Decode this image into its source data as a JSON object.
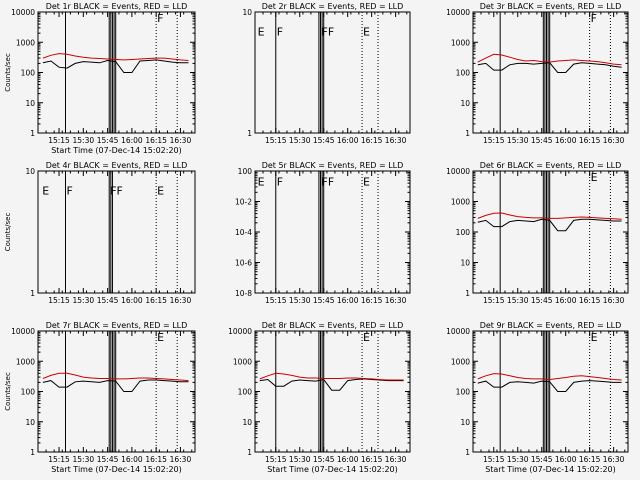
{
  "colors": {
    "events": "#000000",
    "lld": "#cc0000",
    "background": "#f4f4f4"
  },
  "chart_data": [
    {
      "type": "line",
      "title": "Det 1r BLACK = Events, RED = LLD",
      "scale": "log",
      "ylim": [
        1,
        10000
      ],
      "ylabel": "Counts/sec",
      "xlabel": "Start Time (07-Dec-14 15:02:20)",
      "ticks": [
        "1",
        "10",
        "100",
        "1000",
        "10000"
      ],
      "xticks": [
        "15:15",
        "15:30",
        "15:45",
        "16:00",
        "16:15",
        "16:30"
      ],
      "solid_lines": [
        "15:19",
        "15:46",
        "15:47",
        "15:48",
        "15:49",
        "15:50"
      ],
      "dotted_lines": [
        "16:15",
        "16:28"
      ],
      "markers": [
        {
          "label": "F",
          "x": "16:15",
          "y": 10000
        }
      ],
      "series": [
        {
          "name": "Events",
          "color": "#000000",
          "x": [
            "15:05",
            "15:10",
            "15:15",
            "15:20",
            "15:25",
            "15:30",
            "15:35",
            "15:40",
            "15:45",
            "15:50",
            "15:55",
            "16:00",
            "16:05",
            "16:10",
            "16:15",
            "16:20",
            "16:25",
            "16:30",
            "16:35"
          ],
          "values": [
            210,
            240,
            150,
            140,
            200,
            230,
            220,
            210,
            250,
            230,
            100,
            100,
            240,
            250,
            260,
            240,
            220,
            210,
            210
          ]
        },
        {
          "name": "LLD",
          "color": "#cc0000",
          "x": [
            "15:05",
            "15:10",
            "15:15",
            "15:20",
            "15:25",
            "15:30",
            "15:35",
            "15:40",
            "15:45",
            "15:50",
            "15:55",
            "16:00",
            "16:05",
            "16:10",
            "16:15",
            "16:20",
            "16:25",
            "16:30",
            "16:35"
          ],
          "values": [
            300,
            370,
            420,
            400,
            350,
            320,
            300,
            290,
            280,
            270,
            260,
            270,
            280,
            290,
            300,
            300,
            280,
            260,
            250
          ]
        }
      ]
    },
    {
      "type": "line",
      "title": "Det 2r BLACK = Events, RED = LLD",
      "scale": "linear",
      "ylim": [
        1,
        10
      ],
      "ylabel": "",
      "xlabel": "",
      "ticks": [
        "1",
        "10"
      ],
      "xticks": [
        "15:15",
        "15:30",
        "15:45",
        "16:00",
        "16:15",
        "16:30"
      ],
      "solid_lines": [
        "15:15",
        "15:42",
        "15:43",
        "15:44",
        "15:45"
      ],
      "dotted_lines": [
        "16:09",
        "16:19"
      ],
      "markers": [
        {
          "label": "E",
          "x": "15:03",
          "y": 9
        },
        {
          "label": "F",
          "x": "15:15",
          "y": 9
        },
        {
          "label": "FF",
          "x": "15:43",
          "y": 9
        },
        {
          "label": "E",
          "x": "16:09",
          "y": 9
        }
      ],
      "series": []
    },
    {
      "type": "line",
      "title": "Det 3r BLACK = Events, RED = LLD",
      "scale": "log",
      "ylim": [
        1,
        10000
      ],
      "ylabel": "",
      "xlabel": "",
      "ticks": [
        "1",
        "10",
        "100",
        "1000",
        "10000"
      ],
      "xticks": [
        "15:15",
        "15:30",
        "15:45",
        "16:00",
        "16:15",
        "16:30"
      ],
      "solid_lines": [
        "15:19",
        "15:46",
        "15:47",
        "15:48",
        "15:49",
        "15:50"
      ],
      "dotted_lines": [
        "16:15",
        "16:28"
      ],
      "markers": [
        {
          "label": "F",
          "x": "16:15",
          "y": 10000
        }
      ],
      "series": [
        {
          "name": "Events",
          "color": "#000000",
          "x": [
            "15:05",
            "15:10",
            "15:15",
            "15:20",
            "15:25",
            "15:30",
            "15:35",
            "15:40",
            "15:45",
            "15:50",
            "15:55",
            "16:00",
            "16:05",
            "16:10",
            "16:15",
            "16:20",
            "16:25",
            "16:30",
            "16:35"
          ],
          "values": [
            180,
            200,
            120,
            120,
            180,
            200,
            200,
            190,
            200,
            210,
            100,
            100,
            190,
            210,
            200,
            190,
            180,
            160,
            150
          ]
        },
        {
          "name": "LLD",
          "color": "#cc0000",
          "x": [
            "15:05",
            "15:10",
            "15:15",
            "15:20",
            "15:25",
            "15:30",
            "15:35",
            "15:40",
            "15:45",
            "15:50",
            "15:55",
            "16:00",
            "16:05",
            "16:10",
            "16:15",
            "16:20",
            "16:25",
            "16:30",
            "16:35"
          ],
          "values": [
            220,
            300,
            400,
            380,
            320,
            270,
            240,
            250,
            230,
            220,
            240,
            250,
            260,
            250,
            240,
            230,
            210,
            190,
            180
          ]
        }
      ]
    },
    {
      "type": "line",
      "title": "Det 4r BLACK = Events, RED = LLD",
      "scale": "linear",
      "ylim": [
        1,
        10
      ],
      "ylabel": "Counts/sec",
      "xlabel": "",
      "ticks": [
        "1",
        "10"
      ],
      "xticks": [
        "15:15",
        "15:30",
        "15:45",
        "16:00",
        "16:15",
        "16:30"
      ],
      "solid_lines": [
        "15:19",
        "15:46",
        "15:47",
        "15:48"
      ],
      "dotted_lines": [
        "16:15",
        "16:28"
      ],
      "markers": [
        {
          "label": "E",
          "x": "15:04",
          "y": 9
        },
        {
          "label": "F",
          "x": "15:19",
          "y": 9
        },
        {
          "label": "FF",
          "x": "15:46",
          "y": 9
        },
        {
          "label": "E",
          "x": "16:15",
          "y": 9
        }
      ],
      "series": []
    },
    {
      "type": "line",
      "title": "Det 5r BLACK = Events, RED = LLD",
      "scale": "log",
      "ylim": [
        1e-08,
        1
      ],
      "ylabel": "",
      "xlabel": "",
      "ticks": [
        "10-8",
        "10-6",
        "10-4",
        "10-2",
        "100"
      ],
      "xticks": [
        "15:15",
        "15:30",
        "15:45",
        "16:00",
        "16:15",
        "16:30"
      ],
      "solid_lines": [
        "15:15",
        "15:42",
        "15:43",
        "15:44",
        "15:45"
      ],
      "dotted_lines": [
        "16:09",
        "16:19"
      ],
      "markers": [
        {
          "label": "E",
          "x": "15:03",
          "y": 0.5
        },
        {
          "label": "F",
          "x": "15:15",
          "y": 0.5
        },
        {
          "label": "FF",
          "x": "15:43",
          "y": 0.5
        },
        {
          "label": "E",
          "x": "16:09",
          "y": 0.5
        }
      ],
      "series": []
    },
    {
      "type": "line",
      "title": "Det 6r BLACK = Events, RED = LLD",
      "scale": "log",
      "ylim": [
        1,
        10000
      ],
      "ylabel": "",
      "xlabel": "",
      "ticks": [
        "1",
        "10",
        "100",
        "1000",
        "10000"
      ],
      "xticks": [
        "15:15",
        "15:30",
        "15:45",
        "16:00",
        "16:15",
        "16:30"
      ],
      "solid_lines": [
        "15:19",
        "15:46",
        "15:47",
        "15:48",
        "15:49",
        "15:50"
      ],
      "dotted_lines": [
        "16:15",
        "16:28"
      ],
      "markers": [
        {
          "label": "E",
          "x": "16:15",
          "y": 10000
        }
      ],
      "series": [
        {
          "name": "Events",
          "color": "#000000",
          "x": [
            "15:05",
            "15:10",
            "15:15",
            "15:20",
            "15:25",
            "15:30",
            "15:35",
            "15:40",
            "15:45",
            "15:50",
            "15:55",
            "16:00",
            "16:05",
            "16:10",
            "16:15",
            "16:20",
            "16:25",
            "16:30",
            "16:35"
          ],
          "values": [
            210,
            240,
            150,
            150,
            220,
            240,
            230,
            220,
            260,
            240,
            110,
            110,
            240,
            260,
            260,
            250,
            240,
            230,
            230
          ]
        },
        {
          "name": "LLD",
          "color": "#cc0000",
          "x": [
            "15:05",
            "15:10",
            "15:15",
            "15:20",
            "15:25",
            "15:30",
            "15:35",
            "15:40",
            "15:45",
            "15:50",
            "15:55",
            "16:00",
            "16:05",
            "16:10",
            "16:15",
            "16:20",
            "16:25",
            "16:30",
            "16:35"
          ],
          "values": [
            280,
            350,
            410,
            420,
            360,
            320,
            300,
            290,
            290,
            280,
            280,
            290,
            300,
            310,
            300,
            290,
            280,
            270,
            260
          ]
        }
      ]
    },
    {
      "type": "line",
      "title": "Det 7r BLACK = Events, RED = LLD",
      "scale": "log",
      "ylim": [
        1,
        10000
      ],
      "ylabel": "Counts/sec",
      "xlabel": "Start Time (07-Dec-14 15:02:20)",
      "ticks": [
        "1",
        "10",
        "100",
        "1000",
        "10000"
      ],
      "xticks": [
        "15:15",
        "15:30",
        "15:45",
        "16:00",
        "16:15",
        "16:30"
      ],
      "solid_lines": [
        "15:19",
        "15:46",
        "15:47",
        "15:48",
        "15:49",
        "15:50"
      ],
      "dotted_lines": [
        "16:15",
        "16:28"
      ],
      "markers": [
        {
          "label": "E",
          "x": "16:15",
          "y": 10000
        }
      ],
      "series": [
        {
          "name": "Events",
          "color": "#000000",
          "x": [
            "15:05",
            "15:10",
            "15:15",
            "15:20",
            "15:25",
            "15:30",
            "15:35",
            "15:40",
            "15:45",
            "15:50",
            "15:55",
            "16:00",
            "16:05",
            "16:10",
            "16:15",
            "16:20",
            "16:25",
            "16:30",
            "16:35"
          ],
          "values": [
            200,
            230,
            140,
            140,
            210,
            220,
            210,
            200,
            230,
            220,
            100,
            100,
            220,
            240,
            240,
            230,
            220,
            210,
            210
          ]
        },
        {
          "name": "LLD",
          "color": "#cc0000",
          "x": [
            "15:05",
            "15:10",
            "15:15",
            "15:20",
            "15:25",
            "15:30",
            "15:35",
            "15:40",
            "15:45",
            "15:50",
            "15:55",
            "16:00",
            "16:05",
            "16:10",
            "16:15",
            "16:20",
            "16:25",
            "16:30",
            "16:35"
          ],
          "values": [
            270,
            340,
            400,
            400,
            350,
            300,
            280,
            270,
            270,
            260,
            260,
            270,
            280,
            280,
            270,
            260,
            250,
            240,
            230
          ]
        }
      ]
    },
    {
      "type": "line",
      "title": "Det 8r BLACK = Events, RED = LLD",
      "scale": "log",
      "ylim": [
        1,
        10000
      ],
      "ylabel": "",
      "xlabel": "Start Time (07-Dec-14 15:02:20)",
      "ticks": [
        "1",
        "10",
        "100",
        "1000",
        "10000"
      ],
      "xticks": [
        "15:15",
        "15:30",
        "15:45",
        "16:00",
        "16:15",
        "16:30"
      ],
      "solid_lines": [
        "15:15",
        "15:42",
        "15:43",
        "15:44",
        "15:45"
      ],
      "dotted_lines": [
        "16:09",
        "16:19"
      ],
      "markers": [
        {
          "label": "E",
          "x": "16:09",
          "y": 10000
        }
      ],
      "series": [
        {
          "name": "Events",
          "color": "#000000",
          "x": [
            "15:05",
            "15:10",
            "15:15",
            "15:20",
            "15:25",
            "15:30",
            "15:35",
            "15:40",
            "15:45",
            "15:50",
            "15:55",
            "16:00",
            "16:05",
            "16:10",
            "16:15",
            "16:20",
            "16:25",
            "16:30",
            "16:35"
          ],
          "values": [
            230,
            250,
            150,
            150,
            220,
            240,
            230,
            220,
            250,
            110,
            110,
            230,
            250,
            260,
            250,
            240,
            230,
            230,
            230
          ]
        },
        {
          "name": "LLD",
          "color": "#cc0000",
          "x": [
            "15:05",
            "15:10",
            "15:15",
            "15:20",
            "15:25",
            "15:30",
            "15:35",
            "15:40",
            "15:45",
            "15:50",
            "15:55",
            "16:00",
            "16:05",
            "16:10",
            "16:15",
            "16:20",
            "16:25",
            "16:30",
            "16:35"
          ],
          "values": [
            260,
            330,
            400,
            380,
            340,
            300,
            280,
            280,
            270,
            270,
            270,
            280,
            280,
            270,
            260,
            250,
            240,
            240,
            240
          ]
        }
      ]
    },
    {
      "type": "line",
      "title": "Det 9r BLACK = Events, RED = LLD",
      "scale": "log",
      "ylim": [
        1,
        10000
      ],
      "ylabel": "",
      "xlabel": "Start Time (07-Dec-14 15:02:20)",
      "ticks": [
        "1",
        "10",
        "100",
        "1000",
        "10000"
      ],
      "xticks": [
        "15:15",
        "15:30",
        "15:45",
        "16:00",
        "16:15",
        "16:30"
      ],
      "solid_lines": [
        "15:19",
        "15:46",
        "15:47",
        "15:48",
        "15:49",
        "15:50"
      ],
      "dotted_lines": [
        "16:15",
        "16:28"
      ],
      "markers": [
        {
          "label": "E",
          "x": "16:15",
          "y": 10000
        }
      ],
      "series": [
        {
          "name": "Events",
          "color": "#000000",
          "x": [
            "15:05",
            "15:10",
            "15:15",
            "15:20",
            "15:25",
            "15:30",
            "15:35",
            "15:40",
            "15:45",
            "15:50",
            "15:55",
            "16:00",
            "16:05",
            "16:10",
            "16:15",
            "16:20",
            "16:25",
            "16:30",
            "16:35"
          ],
          "values": [
            190,
            220,
            140,
            140,
            200,
            210,
            200,
            190,
            220,
            210,
            100,
            100,
            200,
            220,
            230,
            220,
            210,
            200,
            200
          ]
        },
        {
          "name": "LLD",
          "color": "#cc0000",
          "x": [
            "15:05",
            "15:10",
            "15:15",
            "15:20",
            "15:25",
            "15:30",
            "15:35",
            "15:40",
            "15:45",
            "15:50",
            "15:55",
            "16:00",
            "16:05",
            "16:10",
            "16:15",
            "16:20",
            "16:25",
            "16:30",
            "16:35"
          ],
          "values": [
            260,
            330,
            390,
            380,
            330,
            290,
            270,
            260,
            260,
            250,
            270,
            290,
            320,
            330,
            310,
            290,
            270,
            250,
            240
          ]
        }
      ]
    }
  ]
}
